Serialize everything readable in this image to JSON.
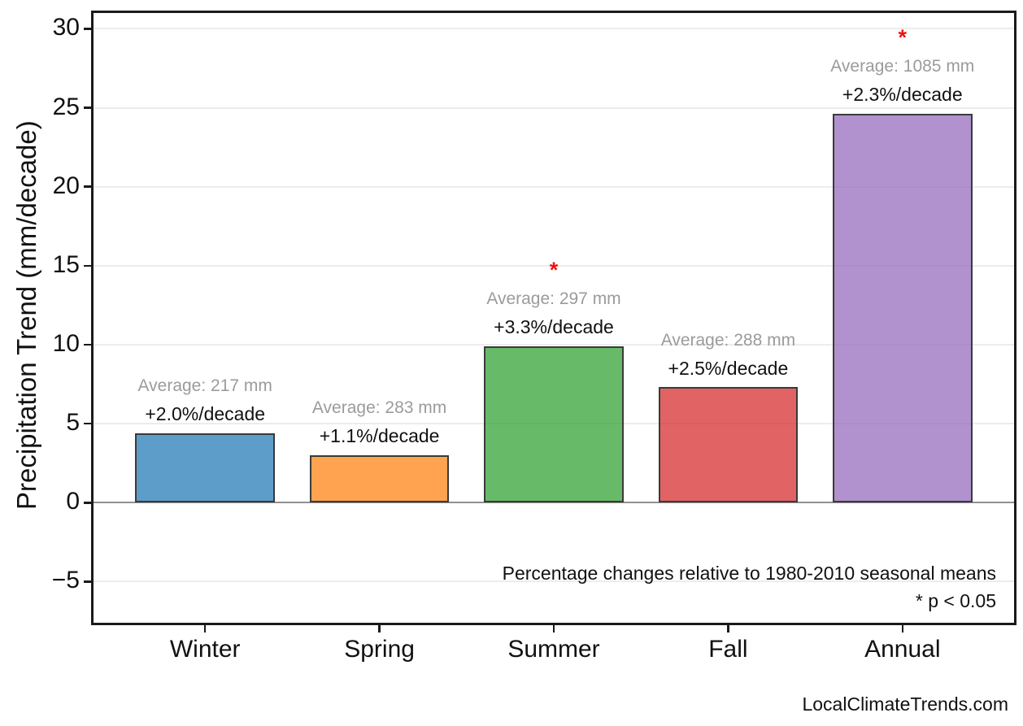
{
  "figure": {
    "background": "#ffffff",
    "ylabel": "Precipitation Trend (mm/decade)",
    "note_line1": "Percentage changes relative to 1980-2010 seasonal means",
    "note_line2": "* p < 0.05",
    "watermark": "LocalClimateTrends.com",
    "significance_marker": "*",
    "colors": {
      "axis_border": "#1a1a1a",
      "gridline": "#ececec",
      "zero_line": "#909090",
      "bar_edge": "#3a3a3a",
      "average_label": "#9b9b9b",
      "significance": "#ee1111",
      "text": "#111111"
    }
  },
  "chart_data": {
    "type": "bar",
    "title": "",
    "xlabel": "",
    "ylabel": "Precipitation Trend (mm/decade)",
    "categories": [
      "Winter",
      "Spring",
      "Summer",
      "Fall",
      "Annual"
    ],
    "values": [
      4.4,
      3.0,
      9.9,
      7.3,
      24.6
    ],
    "ylim": [
      -7.6,
      31.0
    ],
    "yticks": [
      30,
      25,
      20,
      15,
      10,
      5,
      0,
      -5
    ],
    "grid": true,
    "zero_line": true,
    "legend": "none",
    "fill_alpha": 0.72,
    "bars": [
      {
        "category": "Winter",
        "value": 4.4,
        "color": "#1f77b4",
        "average_mm": 217,
        "average_label": "Average: 217 mm",
        "percent_label": "+2.0%/decade",
        "significant": false
      },
      {
        "category": "Spring",
        "value": 3.0,
        "color": "#ff7f0e",
        "average_mm": 283,
        "average_label": "Average: 283 mm",
        "percent_label": "+1.1%/decade",
        "significant": false
      },
      {
        "category": "Summer",
        "value": 9.9,
        "color": "#2ca02c",
        "average_mm": 297,
        "average_label": "Average: 297 mm",
        "percent_label": "+3.3%/decade",
        "significant": true
      },
      {
        "category": "Fall",
        "value": 7.3,
        "color": "#d62728",
        "average_mm": 288,
        "average_label": "Average: 288 mm",
        "percent_label": "+2.5%/decade",
        "significant": false
      },
      {
        "category": "Annual",
        "value": 24.6,
        "color": "#9467bd",
        "average_mm": 1085,
        "average_label": "Average: 1085 mm",
        "percent_label": "+2.3%/decade",
        "significant": true
      }
    ],
    "annotations": [
      "Percentage changes relative to 1980-2010 seasonal means",
      "* p < 0.05"
    ]
  }
}
